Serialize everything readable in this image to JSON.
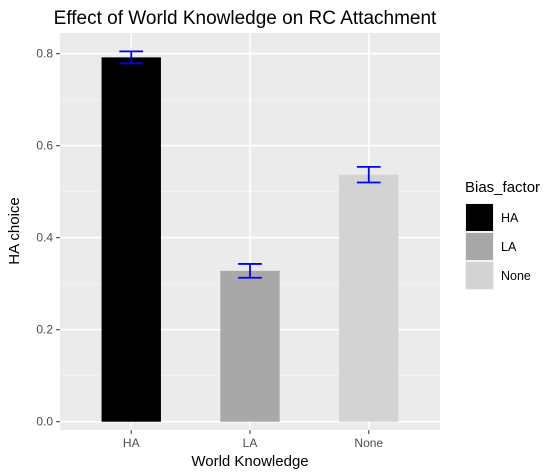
{
  "chart_data": {
    "type": "bar",
    "title": "Effect of World Knowledge on RC Attachment",
    "xlabel": "World Knowledge",
    "ylabel": "HA choice",
    "categories": [
      "HA",
      "LA",
      "None"
    ],
    "values": [
      0.792,
      0.328,
      0.537
    ],
    "error_low": [
      0.779,
      0.313,
      0.52
    ],
    "error_high": [
      0.805,
      0.343,
      0.554
    ],
    "bar_colors": [
      "#000000",
      "#a8a8a8",
      "#d3d3d3"
    ],
    "error_bar_color": "#0000ff",
    "ylim": [
      -0.018,
      0.845
    ],
    "yticks": [
      0.0,
      0.2,
      0.4,
      0.6,
      0.8
    ],
    "ytick_labels": [
      "0.0",
      "0.2",
      "0.4",
      "0.6",
      "0.8"
    ],
    "grid": true,
    "panel_background": "#ebebeb",
    "legend": {
      "title": "Bias_factor",
      "position": "right",
      "entries": [
        {
          "label": "HA",
          "color": "#000000"
        },
        {
          "label": "LA",
          "color": "#a8a8a8"
        },
        {
          "label": "None",
          "color": "#d3d3d3"
        }
      ]
    }
  }
}
